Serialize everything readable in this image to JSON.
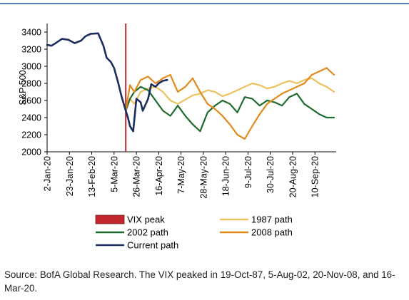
{
  "chart_data": {
    "type": "line",
    "xlabel": "",
    "ylabel": "S&P 500",
    "ylim": [
      2000,
      3500
    ],
    "yticks": [
      "2000",
      "2200",
      "2400",
      "2600",
      "2800",
      "3000",
      "3200",
      "3400"
    ],
    "xticks": [
      "2-Jan-20",
      "23-Jan-20",
      "13-Feb-20",
      "5-Mar-20",
      "26-Mar-20",
      "16-Apr-20",
      "7-May-20",
      "28-May-20",
      "18-Jun-20",
      "9-Jul-20",
      "30-Jul-20",
      "20-Aug-20",
      "10-Sep-20"
    ],
    "grid": false,
    "legend_position": "bottom",
    "vix_peak_date": "16-Mar-20",
    "series": [
      {
        "name": "VIX peak",
        "color": "#c0282e",
        "kind": "bar"
      },
      {
        "name": "1987 path",
        "color": "#ecc15f",
        "x": [
          "16-Mar-20",
          "20-Mar-20",
          "24-Mar-20",
          "30-Mar-20",
          "6-Apr-20",
          "13-Apr-20",
          "20-Apr-20",
          "27-Apr-20",
          "4-May-20",
          "11-May-20",
          "18-May-20",
          "25-May-20",
          "1-Jun-20",
          "8-Jun-20",
          "15-Jun-20",
          "22-Jun-20",
          "29-Jun-20",
          "6-Jul-20",
          "13-Jul-20",
          "20-Jul-20",
          "27-Jul-20",
          "3-Aug-20",
          "10-Aug-20",
          "17-Aug-20",
          "24-Aug-20",
          "31-Aug-20",
          "7-Sep-20",
          "14-Sep-20",
          "21-Sep-20",
          "28-Sep-20"
        ],
        "y": [
          2480,
          2620,
          2560,
          2700,
          2740,
          2760,
          2700,
          2600,
          2560,
          2610,
          2660,
          2680,
          2720,
          2700,
          2650,
          2680,
          2720,
          2760,
          2800,
          2780,
          2740,
          2760,
          2800,
          2830,
          2800,
          2840,
          2860,
          2800,
          2760,
          2700
        ]
      },
      {
        "name": "2002 path",
        "color": "#1e6b2e",
        "x": [
          "16-Mar-20",
          "20-Mar-20",
          "24-Mar-20",
          "30-Mar-20",
          "6-Apr-20",
          "13-Apr-20",
          "20-Apr-20",
          "27-Apr-20",
          "4-May-20",
          "11-May-20",
          "18-May-20",
          "25-May-20",
          "1-Jun-20",
          "8-Jun-20",
          "15-Jun-20",
          "22-Jun-20",
          "29-Jun-20",
          "6-Jul-20",
          "13-Jul-20",
          "20-Jul-20",
          "27-Jul-20",
          "3-Aug-20",
          "10-Aug-20",
          "17-Aug-20",
          "24-Aug-20",
          "31-Aug-20",
          "7-Sep-20",
          "14-Sep-20",
          "21-Sep-20",
          "28-Sep-20"
        ],
        "y": [
          2480,
          2620,
          2700,
          2760,
          2720,
          2600,
          2480,
          2420,
          2540,
          2420,
          2320,
          2240,
          2460,
          2540,
          2600,
          2560,
          2460,
          2640,
          2620,
          2540,
          2600,
          2580,
          2540,
          2640,
          2680,
          2560,
          2500,
          2440,
          2400,
          2400
        ]
      },
      {
        "name": "2008 path",
        "color": "#e28a1b",
        "x": [
          "16-Mar-20",
          "20-Mar-20",
          "24-Mar-20",
          "30-Mar-20",
          "6-Apr-20",
          "13-Apr-20",
          "20-Apr-20",
          "27-Apr-20",
          "4-May-20",
          "11-May-20",
          "18-May-20",
          "25-May-20",
          "1-Jun-20",
          "8-Jun-20",
          "15-Jun-20",
          "22-Jun-20",
          "29-Jun-20",
          "6-Jul-20",
          "13-Jul-20",
          "20-Jul-20",
          "27-Jul-20",
          "3-Aug-20",
          "10-Aug-20",
          "17-Aug-20",
          "24-Aug-20",
          "31-Aug-20",
          "7-Sep-20",
          "14-Sep-20",
          "21-Sep-20",
          "28-Sep-20"
        ],
        "y": [
          2480,
          2780,
          2700,
          2840,
          2880,
          2800,
          2860,
          2900,
          2700,
          2760,
          2860,
          2700,
          2560,
          2500,
          2420,
          2320,
          2200,
          2150,
          2300,
          2440,
          2560,
          2620,
          2680,
          2720,
          2760,
          2800,
          2900,
          2940,
          2980,
          2900
        ]
      },
      {
        "name": "Current path",
        "color": "#1b2d5c",
        "x": [
          "2-Jan-20",
          "6-Jan-20",
          "10-Jan-20",
          "16-Jan-20",
          "22-Jan-20",
          "28-Jan-20",
          "3-Feb-20",
          "7-Feb-20",
          "12-Feb-20",
          "19-Feb-20",
          "24-Feb-20",
          "27-Feb-20",
          "2-Mar-20",
          "5-Mar-20",
          "9-Mar-20",
          "12-Mar-20",
          "16-Mar-20",
          "18-Mar-20",
          "20-Mar-20",
          "23-Mar-20",
          "26-Mar-20",
          "30-Mar-20",
          "1-Apr-20",
          "6-Apr-20",
          "9-Apr-20",
          "13-Apr-20",
          "16-Apr-20",
          "20-Apr-20",
          "24-Apr-20"
        ],
        "y": [
          3250,
          3240,
          3270,
          3320,
          3310,
          3270,
          3300,
          3350,
          3380,
          3385,
          3240,
          3100,
          3050,
          2980,
          2800,
          2650,
          2480,
          2400,
          2300,
          2240,
          2620,
          2580,
          2480,
          2620,
          2790,
          2760,
          2800,
          2830,
          2840
        ]
      }
    ],
    "legend": [
      {
        "label": "VIX peak",
        "kind": "bar",
        "color": "#c0282e"
      },
      {
        "label": "1987 path",
        "kind": "line",
        "color": "#ecc15f"
      },
      {
        "label": "2002 path",
        "kind": "line",
        "color": "#1e6b2e"
      },
      {
        "label": "2008 path",
        "kind": "line",
        "color": "#e28a1b"
      },
      {
        "label": "Current path",
        "kind": "line",
        "color": "#1b2d5c"
      }
    ]
  },
  "source_note": "Source: BofA Global Research. The VIX peaked in 19-Oct-87, 5-Aug-02, 20-Nov-08, and 16-Mar-20."
}
